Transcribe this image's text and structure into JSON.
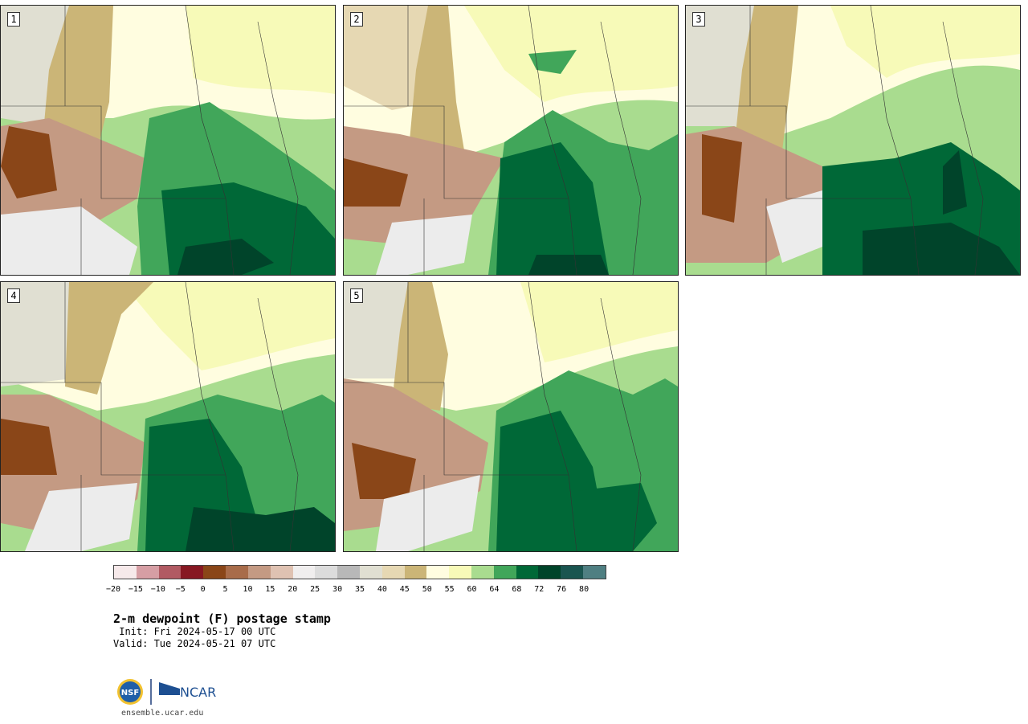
{
  "panels": [
    {
      "label": "1"
    },
    {
      "label": "2"
    },
    {
      "label": "3"
    },
    {
      "label": "4"
    },
    {
      "label": "5"
    }
  ],
  "colorbar": {
    "colors": [
      "#f6e9ea",
      "#d69ea4",
      "#b15a63",
      "#871822",
      "#8a4618",
      "#a86c4a",
      "#c49a83",
      "#dfc2b2",
      "#f0eeee",
      "#dcdcdc",
      "#b8b8b8",
      "#e0dfd2",
      "#e6d8b3",
      "#cbb577",
      "#fffde0",
      "#f7fab8",
      "#a9dc8f",
      "#41a65a",
      "#006837",
      "#00442a",
      "#1a5550",
      "#4f7f82"
    ],
    "ticks": [
      "−20",
      "−15",
      "−10",
      "−5",
      "0",
      "5",
      "10",
      "15",
      "20",
      "25",
      "30",
      "35",
      "40",
      "45",
      "50",
      "55",
      "60",
      "64",
      "68",
      "72",
      "76",
      "80"
    ]
  },
  "title": "2-m dewpoint (F) postage stamp",
  "init": " Init: Fri 2024-05-17 00 UTC",
  "valid": "Valid: Tue 2024-05-21 07 UTC",
  "logos": {
    "nsf": "NSF",
    "ncar": "NCAR"
  },
  "website": "ensemble.ucar.edu"
}
